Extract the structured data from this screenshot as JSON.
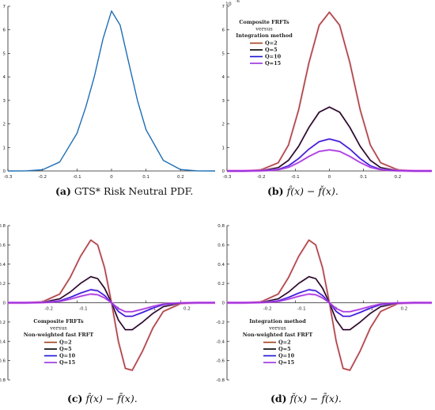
{
  "chart_data": [
    {
      "id": "a",
      "type": "line",
      "x": [
        -0.3,
        -0.25,
        -0.2,
        -0.15,
        -0.1,
        -0.075,
        -0.05,
        -0.025,
        0,
        0.025,
        0.05,
        0.075,
        0.1,
        0.15,
        0.2,
        0.25,
        0.3
      ],
      "series": [
        {
          "values": [
            0,
            0.003,
            0.05,
            0.38,
            1.6,
            2.7,
            4.0,
            5.6,
            6.8,
            6.2,
            4.6,
            3.0,
            1.75,
            0.45,
            0.06,
            0.005,
            0
          ],
          "color": "#1f6eb4"
        }
      ],
      "xlim": [
        -0.3,
        0.3
      ],
      "ylim": [
        0,
        7
      ],
      "xticks": [
        "-0.3",
        "-0.2",
        "-0.1",
        "0",
        "0.1",
        "0.2"
      ],
      "yticks": [
        "0",
        "1",
        "2",
        "3",
        "4",
        "5",
        "6",
        "7"
      ],
      "caption_label": "(a)",
      "caption_text": "GTS* Risk Neutral PDF."
    },
    {
      "id": "b",
      "type": "line",
      "x": [
        -0.3,
        -0.25,
        -0.2,
        -0.15,
        -0.12,
        -0.09,
        -0.06,
        -0.03,
        0,
        0.03,
        0.06,
        0.09,
        0.12,
        0.15,
        0.2,
        0.25,
        0.3
      ],
      "exponent_label": "10",
      "exponent_power": "-6",
      "series": [
        {
          "name": "Q=2",
          "color": "#a0401c",
          "values": [
            0,
            0.002,
            0.05,
            0.35,
            1.1,
            2.6,
            4.6,
            6.2,
            6.75,
            6.2,
            4.6,
            2.6,
            1.1,
            0.35,
            0.05,
            0.002,
            0
          ]
        },
        {
          "name": "Q=5",
          "color": "#000000",
          "values": [
            0,
            0.001,
            0.02,
            0.14,
            0.45,
            1.05,
            1.85,
            2.5,
            2.72,
            2.5,
            1.85,
            1.05,
            0.45,
            0.14,
            0.02,
            0.001,
            0
          ]
        },
        {
          "name": "Q=10",
          "color": "#1a12d6",
          "values": [
            0,
            0.0005,
            0.01,
            0.07,
            0.22,
            0.53,
            0.93,
            1.25,
            1.36,
            1.25,
            0.93,
            0.53,
            0.22,
            0.07,
            0.01,
            0.0005,
            0
          ]
        },
        {
          "name": "Q=15",
          "color": "#9a2ee0",
          "values": [
            0,
            0.0003,
            0.007,
            0.05,
            0.15,
            0.36,
            0.62,
            0.83,
            0.9,
            0.83,
            0.62,
            0.36,
            0.15,
            0.05,
            0.007,
            0.0003,
            0
          ]
        }
      ],
      "xlim": [
        -0.3,
        0.3
      ],
      "ylim": [
        0,
        7
      ],
      "xticks": [
        "-0.3",
        "-0.2",
        "-0.1",
        "0",
        "0.1",
        "0.2"
      ],
      "yticks": [
        "0",
        "1",
        "2",
        "3",
        "4",
        "5",
        "6",
        "7"
      ],
      "legend_title": [
        "Composite FRFTs",
        "versus",
        "Integration method"
      ],
      "caption_label": "(b)"
    },
    {
      "id": "c",
      "type": "line",
      "x": [
        -0.3,
        -0.25,
        -0.2,
        -0.15,
        -0.12,
        -0.09,
        -0.06,
        -0.04,
        -0.02,
        0,
        0.02,
        0.04,
        0.06,
        0.09,
        0.12,
        0.15,
        0.2,
        0.25,
        0.3
      ],
      "series": [
        {
          "name": "Q=2",
          "color": "#a0401c",
          "values": [
            0,
            0,
            0.01,
            0.09,
            0.26,
            0.48,
            0.65,
            0.6,
            0.36,
            0,
            -0.4,
            -0.68,
            -0.7,
            -0.5,
            -0.26,
            -0.09,
            -0.01,
            0,
            0
          ]
        },
        {
          "name": "Q=5",
          "color": "#000000",
          "values": [
            0,
            0,
            0.005,
            0.04,
            0.11,
            0.2,
            0.27,
            0.25,
            0.15,
            0,
            -0.18,
            -0.28,
            -0.28,
            -0.2,
            -0.11,
            -0.04,
            -0.005,
            0,
            0
          ]
        },
        {
          "name": "Q=10",
          "color": "#1a12d6",
          "values": [
            0,
            0,
            0.002,
            0.02,
            0.055,
            0.1,
            0.135,
            0.125,
            0.075,
            0,
            -0.09,
            -0.14,
            -0.14,
            -0.1,
            -0.055,
            -0.02,
            -0.002,
            0,
            0
          ]
        },
        {
          "name": "Q=15",
          "color": "#9a2ee0",
          "values": [
            0,
            0,
            0.0015,
            0.013,
            0.037,
            0.067,
            0.09,
            0.083,
            0.05,
            0,
            -0.06,
            -0.093,
            -0.093,
            -0.067,
            -0.037,
            -0.013,
            -0.0015,
            0,
            0
          ]
        }
      ],
      "xlim": [
        -0.3,
        0.3
      ],
      "ylim": [
        -0.8,
        0.8
      ],
      "xtick_values": [
        -0.2,
        -0.1,
        0,
        0.1,
        0.2
      ],
      "xticks": [
        "-0.2",
        "-0.1",
        "0",
        "0.1",
        "0.2"
      ],
      "yticks": [
        "-0.8",
        "-0.6",
        "-0.4",
        "-0.2",
        "0",
        "0.2",
        "0.4",
        "0.6",
        "0.8"
      ],
      "legend_title": [
        "Composite FRFTs",
        "versus",
        "Non-weighted fast FRFT"
      ],
      "caption_label": "(c)"
    },
    {
      "id": "d",
      "type": "line",
      "x": [
        -0.3,
        -0.25,
        -0.2,
        -0.15,
        -0.12,
        -0.09,
        -0.06,
        -0.04,
        -0.02,
        0,
        0.02,
        0.04,
        0.06,
        0.09,
        0.12,
        0.15,
        0.2,
        0.25,
        0.3
      ],
      "series": [
        {
          "name": "Q=2",
          "color": "#a0401c",
          "values": [
            0,
            0,
            0.01,
            0.09,
            0.26,
            0.48,
            0.65,
            0.6,
            0.36,
            0,
            -0.4,
            -0.68,
            -0.7,
            -0.5,
            -0.26,
            -0.09,
            -0.01,
            0,
            0
          ]
        },
        {
          "name": "Q=5",
          "color": "#000000",
          "values": [
            0,
            0,
            0.005,
            0.04,
            0.11,
            0.2,
            0.27,
            0.25,
            0.15,
            0,
            -0.18,
            -0.28,
            -0.28,
            -0.2,
            -0.11,
            -0.04,
            -0.005,
            0,
            0
          ]
        },
        {
          "name": "Q=10",
          "color": "#1a12d6",
          "values": [
            0,
            0,
            0.002,
            0.02,
            0.055,
            0.1,
            0.135,
            0.125,
            0.075,
            0,
            -0.09,
            -0.14,
            -0.14,
            -0.1,
            -0.055,
            -0.02,
            -0.002,
            0,
            0
          ]
        },
        {
          "name": "Q=15",
          "color": "#9a2ee0",
          "values": [
            0,
            0,
            0.0015,
            0.013,
            0.037,
            0.067,
            0.09,
            0.083,
            0.05,
            0,
            -0.06,
            -0.093,
            -0.093,
            -0.067,
            -0.037,
            -0.013,
            -0.0015,
            0,
            0
          ]
        }
      ],
      "xlim": [
        -0.3,
        0.3
      ],
      "ylim": [
        -0.8,
        0.8
      ],
      "xtick_values": [
        -0.2,
        -0.1,
        0,
        0.1,
        0.2
      ],
      "xticks": [
        "-0.2",
        "-0.1",
        "0",
        "0.1",
        "0.2"
      ],
      "yticks": [
        "-0.8",
        "-0.6",
        "-0.4",
        "-0.2",
        "0",
        "0.2",
        "0.4",
        "0.6",
        "0.8"
      ],
      "legend_title": [
        "Integration method",
        "versus",
        "Non-weighted fast FRFT"
      ],
      "caption_label": "(d)"
    }
  ]
}
